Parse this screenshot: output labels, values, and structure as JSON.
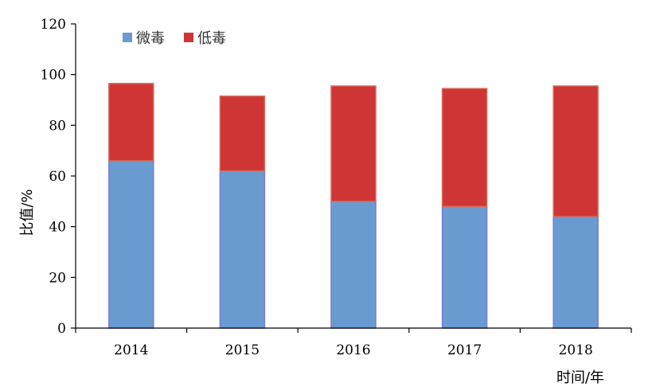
{
  "chart_data": {
    "type": "bar",
    "stacked": true,
    "categories": [
      "2014",
      "2015",
      "2016",
      "2017",
      "2018"
    ],
    "series": [
      {
        "name": "微毒",
        "values": [
          66,
          62,
          50,
          48,
          44
        ],
        "color": "#6a9bd0"
      },
      {
        "name": "低毒",
        "values": [
          30.5,
          29.5,
          45.5,
          46.5,
          51.5
        ],
        "color": "#cf3535"
      }
    ],
    "xlabel": "时间/年",
    "ylabel": "比值/%",
    "ylim": [
      0,
      120
    ],
    "yticks": [
      0,
      20,
      40,
      60,
      80,
      100,
      120
    ],
    "grid": false,
    "legend_position": "top-left"
  }
}
